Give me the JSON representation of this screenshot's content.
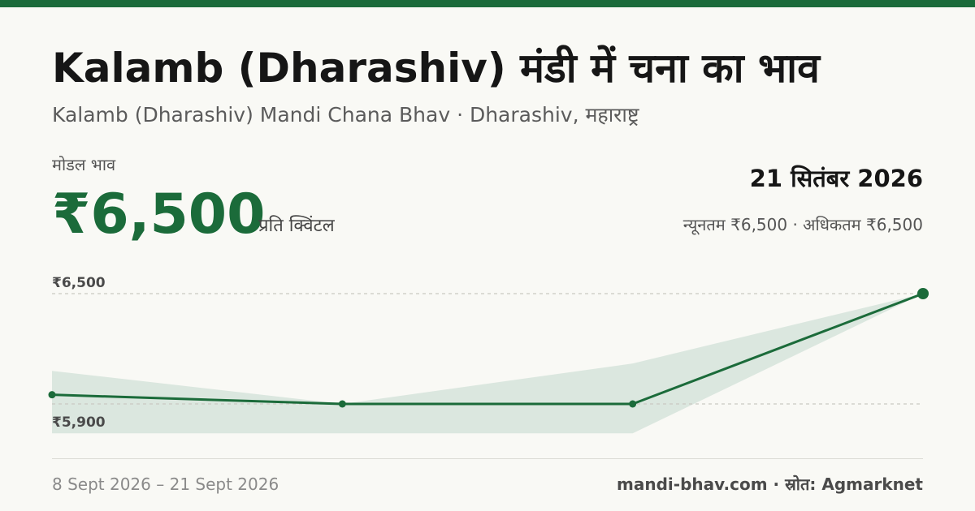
{
  "header": {
    "title": "Kalamb (Dharashiv) मंडी में चना का भाव",
    "subtitle": "Kalamb (Dharashiv) Mandi Chana Bhav · Dharashiv, महाराष्ट्र"
  },
  "price": {
    "label": "मोडल भाव",
    "value": "₹6,500",
    "unit": "प्रति क्विंटल",
    "date": "21 सितंबर 2026",
    "minmax": "न्यूनतम ₹6,500 · अधिकतम ₹6,500"
  },
  "footer": {
    "range": "8 Sept 2026 – 21 Sept 2026",
    "site": "mandi-bhav.com · स्रोत: Agmarknet"
  },
  "colors": {
    "accent": "#1b6b3a",
    "band": "#dbe7df",
    "background": "#f9f9f5"
  },
  "chart_data": {
    "type": "line",
    "ylim": [
      5900,
      6500
    ],
    "tick_labels": [
      "₹6,500",
      "₹5,900"
    ],
    "x": [
      "8 Sept 2026",
      "",
      "",
      "21 Sept 2026"
    ],
    "series": [
      {
        "values": [
          5950,
          5900,
          5900,
          6500
        ]
      }
    ],
    "band": {
      "min": [
        5740,
        5740,
        5740,
        6500
      ],
      "max": [
        6080,
        5900,
        6120,
        6500
      ]
    },
    "grid": true,
    "legend": "none"
  }
}
